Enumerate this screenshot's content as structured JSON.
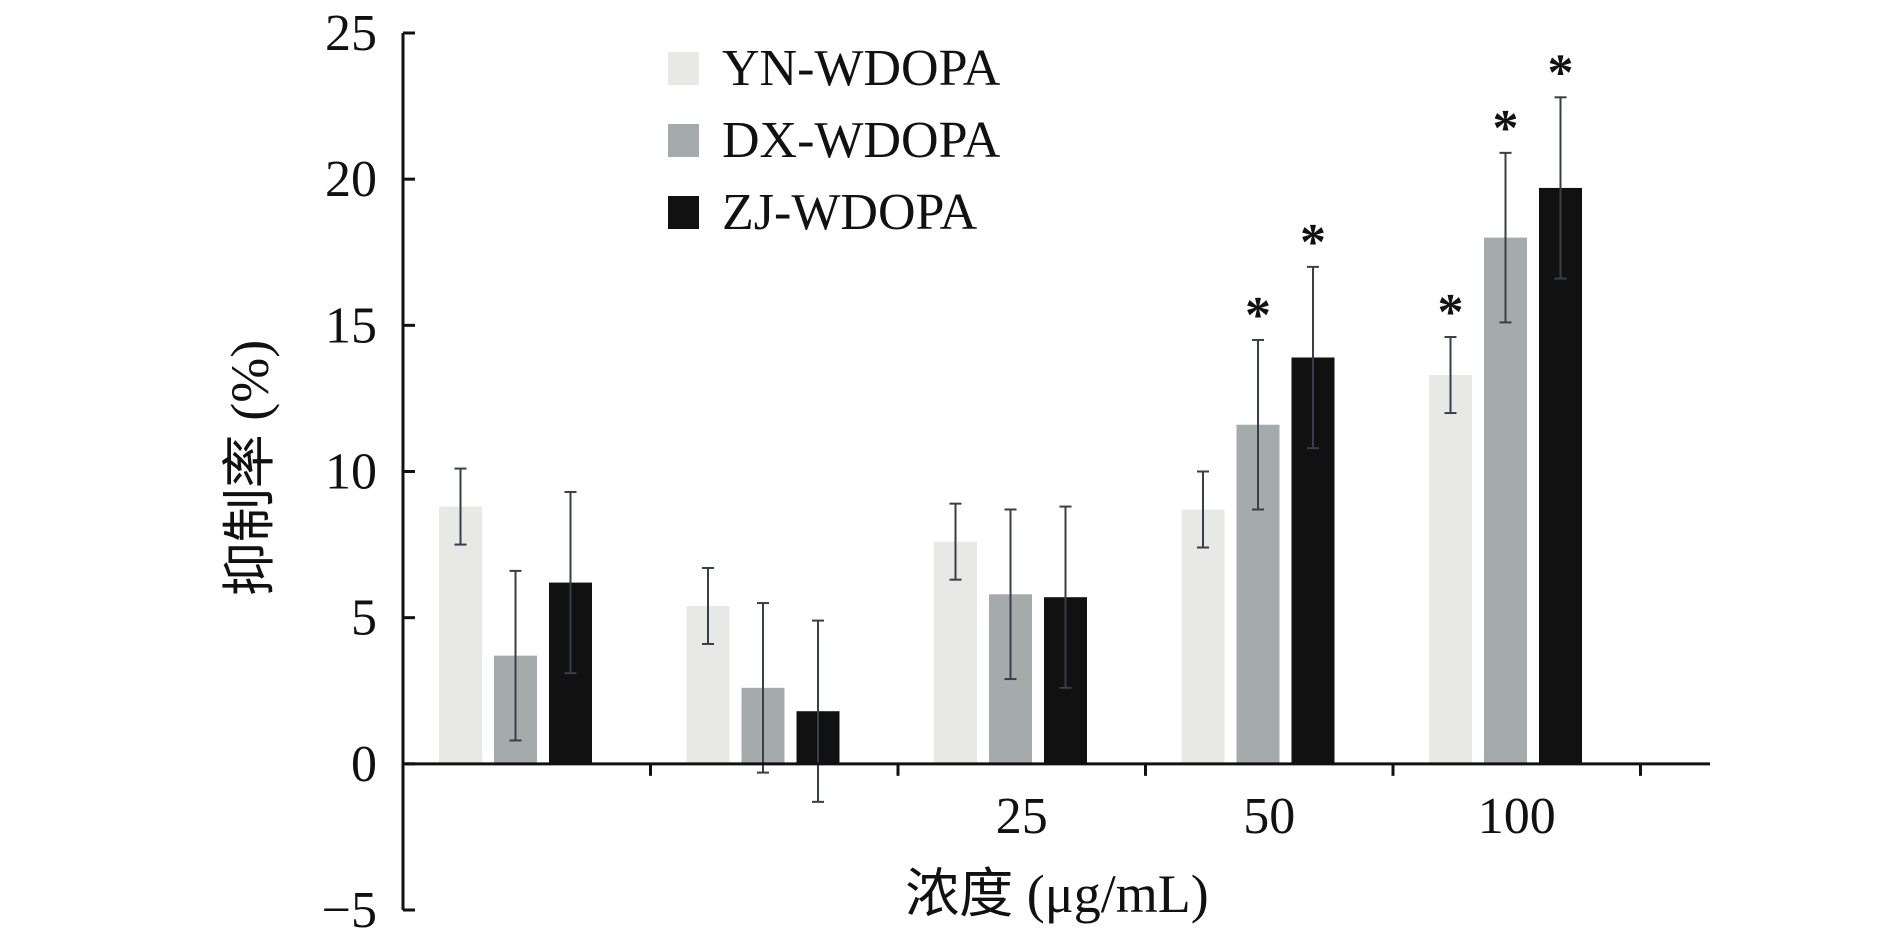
{
  "chart_data": {
    "type": "bar",
    "title": "",
    "xlabel": "浓度 (μg/mL)",
    "ylabel": "抑制率 (%)",
    "ylim": [
      -5,
      25
    ],
    "yticks": [
      -5,
      0,
      5,
      10,
      15,
      20,
      25
    ],
    "ytick_labels": [
      "−5",
      "0",
      "5",
      "10",
      "15",
      "20",
      "25"
    ],
    "categories": [
      "",
      "",
      "25",
      "50",
      "100"
    ],
    "legend": "top-left",
    "grid": false,
    "series": [
      {
        "name": "YN-WDOPA",
        "color": "#e8e8e6",
        "values": [
          8.8,
          5.4,
          7.6,
          8.7,
          13.3
        ],
        "errors": [
          1.3,
          1.3,
          1.3,
          1.3,
          1.3
        ],
        "significant": [
          false,
          false,
          false,
          false,
          true
        ]
      },
      {
        "name": "DX-WDOPA",
        "color": "#a5aaab",
        "values": [
          3.7,
          2.6,
          5.8,
          11.6,
          18.0
        ],
        "errors": [
          2.9,
          2.9,
          2.9,
          2.9,
          2.9
        ],
        "significant": [
          false,
          false,
          false,
          true,
          true
        ]
      },
      {
        "name": "ZJ-WDOPA",
        "color": "#111111",
        "values": [
          6.2,
          1.8,
          5.7,
          13.9,
          19.7
        ],
        "errors": [
          3.1,
          3.1,
          3.1,
          3.1,
          3.1
        ],
        "significant": [
          false,
          false,
          false,
          true,
          true
        ]
      }
    ],
    "significance_marker": "*"
  }
}
